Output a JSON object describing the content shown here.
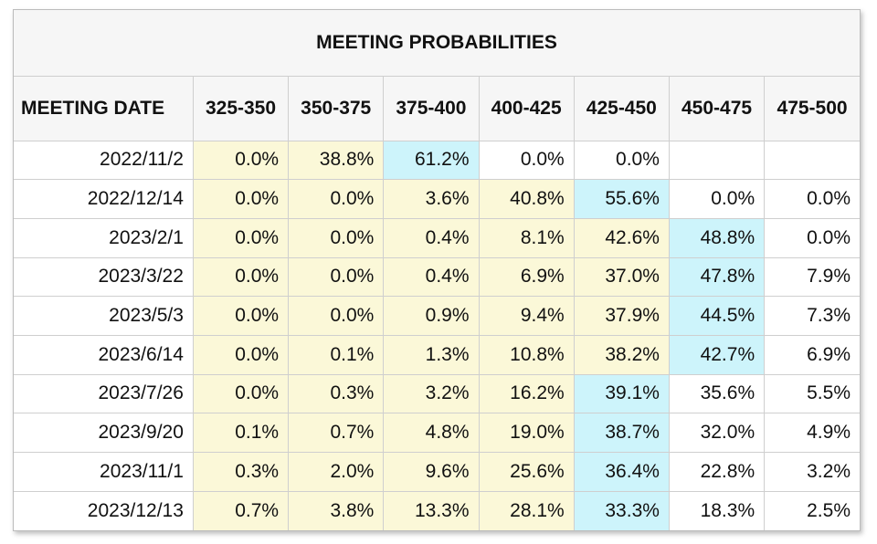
{
  "title": "MEETING PROBABILITIES",
  "headers": [
    "MEETING DATE",
    "325-350",
    "350-375",
    "375-400",
    "400-425",
    "425-450",
    "450-475",
    "475-500"
  ],
  "colors": {
    "highlight_yellow": "#fbf8d8",
    "highlight_blue": "#cdf4fb",
    "header_bg": "#f6f6f6"
  },
  "rows": [
    {
      "date": "2022/11/2",
      "cells": [
        {
          "v": "0.0%",
          "bg": "yellow"
        },
        {
          "v": "38.8%",
          "bg": "yellow"
        },
        {
          "v": "61.2%",
          "bg": "blue"
        },
        {
          "v": "0.0%",
          "bg": "white"
        },
        {
          "v": "0.0%",
          "bg": "white"
        },
        {
          "v": "",
          "bg": "white"
        },
        {
          "v": "",
          "bg": "white"
        }
      ]
    },
    {
      "date": "2022/12/14",
      "cells": [
        {
          "v": "0.0%",
          "bg": "yellow"
        },
        {
          "v": "0.0%",
          "bg": "yellow"
        },
        {
          "v": "3.6%",
          "bg": "yellow"
        },
        {
          "v": "40.8%",
          "bg": "yellow"
        },
        {
          "v": "55.6%",
          "bg": "blue"
        },
        {
          "v": "0.0%",
          "bg": "white"
        },
        {
          "v": "0.0%",
          "bg": "white"
        }
      ]
    },
    {
      "date": "2023/2/1",
      "cells": [
        {
          "v": "0.0%",
          "bg": "yellow"
        },
        {
          "v": "0.0%",
          "bg": "yellow"
        },
        {
          "v": "0.4%",
          "bg": "yellow"
        },
        {
          "v": "8.1%",
          "bg": "yellow"
        },
        {
          "v": "42.6%",
          "bg": "yellow"
        },
        {
          "v": "48.8%",
          "bg": "blue"
        },
        {
          "v": "0.0%",
          "bg": "white"
        }
      ]
    },
    {
      "date": "2023/3/22",
      "cells": [
        {
          "v": "0.0%",
          "bg": "yellow"
        },
        {
          "v": "0.0%",
          "bg": "yellow"
        },
        {
          "v": "0.4%",
          "bg": "yellow"
        },
        {
          "v": "6.9%",
          "bg": "yellow"
        },
        {
          "v": "37.0%",
          "bg": "yellow"
        },
        {
          "v": "47.8%",
          "bg": "blue"
        },
        {
          "v": "7.9%",
          "bg": "white"
        }
      ]
    },
    {
      "date": "2023/5/3",
      "cells": [
        {
          "v": "0.0%",
          "bg": "yellow"
        },
        {
          "v": "0.0%",
          "bg": "yellow"
        },
        {
          "v": "0.9%",
          "bg": "yellow"
        },
        {
          "v": "9.4%",
          "bg": "yellow"
        },
        {
          "v": "37.9%",
          "bg": "yellow"
        },
        {
          "v": "44.5%",
          "bg": "blue"
        },
        {
          "v": "7.3%",
          "bg": "white"
        }
      ]
    },
    {
      "date": "2023/6/14",
      "cells": [
        {
          "v": "0.0%",
          "bg": "yellow"
        },
        {
          "v": "0.1%",
          "bg": "yellow"
        },
        {
          "v": "1.3%",
          "bg": "yellow"
        },
        {
          "v": "10.8%",
          "bg": "yellow"
        },
        {
          "v": "38.2%",
          "bg": "yellow"
        },
        {
          "v": "42.7%",
          "bg": "blue"
        },
        {
          "v": "6.9%",
          "bg": "white"
        }
      ]
    },
    {
      "date": "2023/7/26",
      "cells": [
        {
          "v": "0.0%",
          "bg": "yellow"
        },
        {
          "v": "0.3%",
          "bg": "yellow"
        },
        {
          "v": "3.2%",
          "bg": "yellow"
        },
        {
          "v": "16.2%",
          "bg": "yellow"
        },
        {
          "v": "39.1%",
          "bg": "blue"
        },
        {
          "v": "35.6%",
          "bg": "white"
        },
        {
          "v": "5.5%",
          "bg": "white"
        }
      ]
    },
    {
      "date": "2023/9/20",
      "cells": [
        {
          "v": "0.1%",
          "bg": "yellow"
        },
        {
          "v": "0.7%",
          "bg": "yellow"
        },
        {
          "v": "4.8%",
          "bg": "yellow"
        },
        {
          "v": "19.0%",
          "bg": "yellow"
        },
        {
          "v": "38.7%",
          "bg": "blue"
        },
        {
          "v": "32.0%",
          "bg": "white"
        },
        {
          "v": "4.9%",
          "bg": "white"
        }
      ]
    },
    {
      "date": "2023/11/1",
      "cells": [
        {
          "v": "0.3%",
          "bg": "yellow"
        },
        {
          "v": "2.0%",
          "bg": "yellow"
        },
        {
          "v": "9.6%",
          "bg": "yellow"
        },
        {
          "v": "25.6%",
          "bg": "yellow"
        },
        {
          "v": "36.4%",
          "bg": "blue"
        },
        {
          "v": "22.8%",
          "bg": "white"
        },
        {
          "v": "3.2%",
          "bg": "white"
        }
      ]
    },
    {
      "date": "2023/12/13",
      "cells": [
        {
          "v": "0.7%",
          "bg": "yellow"
        },
        {
          "v": "3.8%",
          "bg": "yellow"
        },
        {
          "v": "13.3%",
          "bg": "yellow"
        },
        {
          "v": "28.1%",
          "bg": "yellow"
        },
        {
          "v": "33.3%",
          "bg": "blue"
        },
        {
          "v": "18.3%",
          "bg": "white"
        },
        {
          "v": "2.5%",
          "bg": "white"
        }
      ]
    }
  ]
}
